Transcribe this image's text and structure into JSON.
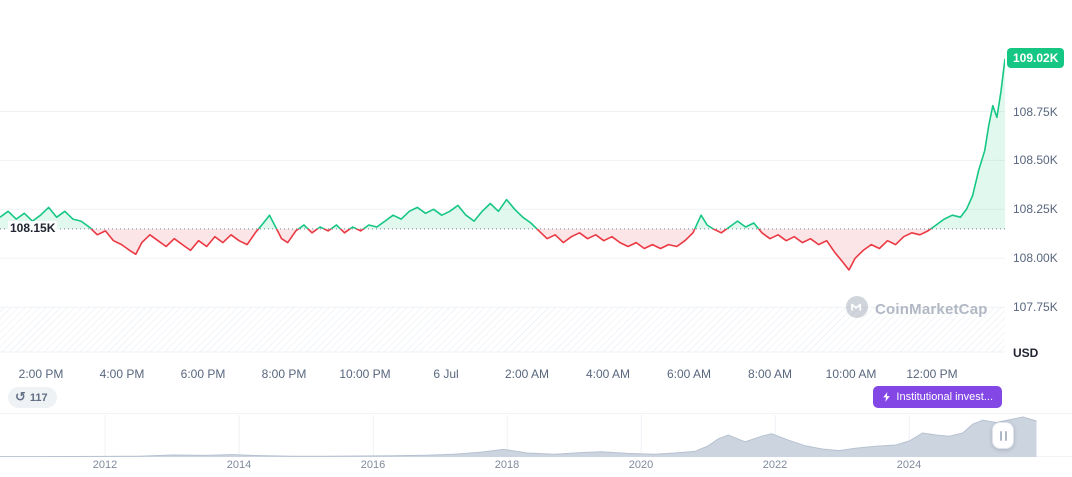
{
  "labels": {
    "current_price": "109.02K",
    "baseline": "108.15K",
    "currency": "USD"
  },
  "badges": {
    "history_count": "117",
    "annotation_label": "Institutional invest..."
  },
  "watermark_text": "CoinMarketCap",
  "colors": {
    "up": "#16c784",
    "down": "#ea3943",
    "up_fill": "rgba(22,199,132,0.13)",
    "down_fill": "rgba(234,57,67,0.13)",
    "grid": "#eff2f5",
    "baseline_dots": "#76809b",
    "annotation_purple": "#8247e5",
    "minimap_fill": "#ccd4e0",
    "minimap_line": "#b7c1d0"
  },
  "chart_data": [
    {
      "type": "line",
      "title": "",
      "ylabel": "USD",
      "baseline": 108.15,
      "xlim": [
        0,
        24.8
      ],
      "ylim": [
        107.48,
        109.32
      ],
      "grid": "horizontal",
      "legend": "none",
      "xticks": {
        "values": [
          1,
          3,
          5,
          7,
          9,
          11,
          13,
          15,
          17,
          19,
          21,
          23
        ],
        "labels": [
          "2:00 PM",
          "4:00 PM",
          "6:00 PM",
          "8:00 PM",
          "10:00 PM",
          "6 Jul",
          "2:00 AM",
          "4:00 AM",
          "6:00 AM",
          "8:00 AM",
          "10:00 AM",
          "12:00 PM"
        ]
      },
      "yticks": {
        "values": [
          108.75,
          108.5,
          108.25,
          108.0,
          107.75
        ],
        "labels": [
          "108.75K",
          "108.50K",
          "108.25K",
          "108.00K",
          "107.75K"
        ]
      },
      "x": [
        0,
        0.2,
        0.4,
        0.6,
        0.8,
        1,
        1.2,
        1.4,
        1.6,
        1.8,
        2,
        2.2,
        2.4,
        2.6,
        2.8,
        3,
        3.2,
        3.35,
        3.5,
        3.7,
        3.9,
        4.1,
        4.3,
        4.5,
        4.7,
        4.9,
        5.1,
        5.3,
        5.5,
        5.7,
        5.9,
        6.1,
        6.3,
        6.5,
        6.65,
        6.8,
        6.95,
        7.1,
        7.3,
        7.5,
        7.7,
        7.9,
        8.1,
        8.3,
        8.5,
        8.7,
        8.9,
        9.1,
        9.3,
        9.5,
        9.7,
        9.9,
        10.1,
        10.3,
        10.5,
        10.7,
        10.9,
        11.1,
        11.3,
        11.5,
        11.7,
        11.9,
        12.1,
        12.3,
        12.5,
        12.7,
        12.9,
        13.1,
        13.3,
        13.5,
        13.7,
        13.9,
        14.1,
        14.3,
        14.5,
        14.7,
        14.9,
        15.1,
        15.3,
        15.5,
        15.7,
        15.9,
        16.1,
        16.3,
        16.5,
        16.7,
        16.9,
        17.1,
        17.3,
        17.45,
        17.6,
        17.8,
        18,
        18.2,
        18.4,
        18.6,
        18.8,
        19,
        19.2,
        19.4,
        19.6,
        19.8,
        20,
        20.2,
        20.4,
        20.6,
        20.8,
        20.95,
        21.1,
        21.3,
        21.5,
        21.7,
        21.9,
        22.1,
        22.3,
        22.5,
        22.7,
        22.9,
        23.1,
        23.3,
        23.5,
        23.7,
        23.85,
        24,
        24.15,
        24.3,
        24.4,
        24.5,
        24.6,
        24.7,
        24.8
      ],
      "values": [
        108.21,
        108.24,
        108.2,
        108.23,
        108.19,
        108.22,
        108.26,
        108.21,
        108.24,
        108.2,
        108.19,
        108.16,
        108.12,
        108.14,
        108.09,
        108.07,
        108.04,
        108.02,
        108.08,
        108.12,
        108.09,
        108.06,
        108.1,
        108.07,
        108.04,
        108.09,
        108.06,
        108.11,
        108.08,
        108.12,
        108.09,
        108.07,
        108.13,
        108.18,
        108.22,
        108.16,
        108.1,
        108.08,
        108.14,
        108.17,
        108.13,
        108.16,
        108.14,
        108.17,
        108.13,
        108.16,
        108.14,
        108.17,
        108.16,
        108.19,
        108.22,
        108.2,
        108.24,
        108.26,
        108.23,
        108.25,
        108.22,
        108.24,
        108.27,
        108.22,
        108.19,
        108.24,
        108.28,
        108.24,
        108.3,
        108.25,
        108.21,
        108.18,
        108.14,
        108.1,
        108.12,
        108.08,
        108.11,
        108.13,
        108.1,
        108.12,
        108.09,
        108.11,
        108.08,
        108.06,
        108.08,
        108.05,
        108.07,
        108.05,
        108.07,
        108.06,
        108.09,
        108.13,
        108.22,
        108.17,
        108.15,
        108.13,
        108.16,
        108.19,
        108.16,
        108.18,
        108.13,
        108.1,
        108.12,
        108.09,
        108.11,
        108.08,
        108.1,
        108.07,
        108.09,
        108.03,
        107.98,
        107.94,
        108,
        108.04,
        108.07,
        108.05,
        108.09,
        108.07,
        108.11,
        108.13,
        108.12,
        108.14,
        108.17,
        108.2,
        108.22,
        108.21,
        108.25,
        108.32,
        108.45,
        108.55,
        108.68,
        108.78,
        108.72,
        108.85,
        109.02
      ]
    },
    {
      "type": "area",
      "title": "",
      "xlim": [
        2010.43,
        2026.43
      ],
      "ylim": [
        0,
        1.05
      ],
      "xticks": {
        "values": [
          2012,
          2014,
          2016,
          2018,
          2020,
          2022,
          2024
        ],
        "labels": [
          "2012",
          "2014",
          "2016",
          "2018",
          "2020",
          "2022",
          "2024"
        ]
      },
      "x": [
        2010.43,
        2011,
        2011.5,
        2012,
        2012.5,
        2013,
        2013.5,
        2013.9,
        2014.3,
        2014.8,
        2015.3,
        2015.8,
        2016.3,
        2016.8,
        2017.2,
        2017.6,
        2017.95,
        2018.3,
        2018.7,
        2019.1,
        2019.4,
        2019.8,
        2020.2,
        2020.5,
        2020.8,
        2021,
        2021.15,
        2021.3,
        2021.55,
        2021.8,
        2021.95,
        2022.2,
        2022.45,
        2022.7,
        2022.95,
        2023.2,
        2023.5,
        2023.8,
        2024,
        2024.2,
        2024.4,
        2024.6,
        2024.8,
        2024.95,
        2025.1,
        2025.3,
        2025.5,
        2025.7,
        2025.9
      ],
      "values": [
        0.01,
        0.01,
        0.012,
        0.015,
        0.02,
        0.05,
        0.04,
        0.06,
        0.035,
        0.02,
        0.018,
        0.025,
        0.03,
        0.045,
        0.07,
        0.12,
        0.19,
        0.1,
        0.07,
        0.11,
        0.13,
        0.09,
        0.07,
        0.1,
        0.14,
        0.28,
        0.45,
        0.55,
        0.38,
        0.52,
        0.58,
        0.42,
        0.28,
        0.2,
        0.16,
        0.22,
        0.27,
        0.3,
        0.4,
        0.6,
        0.55,
        0.52,
        0.6,
        0.82,
        0.92,
        0.86,
        0.93,
        1,
        0.9
      ]
    }
  ]
}
